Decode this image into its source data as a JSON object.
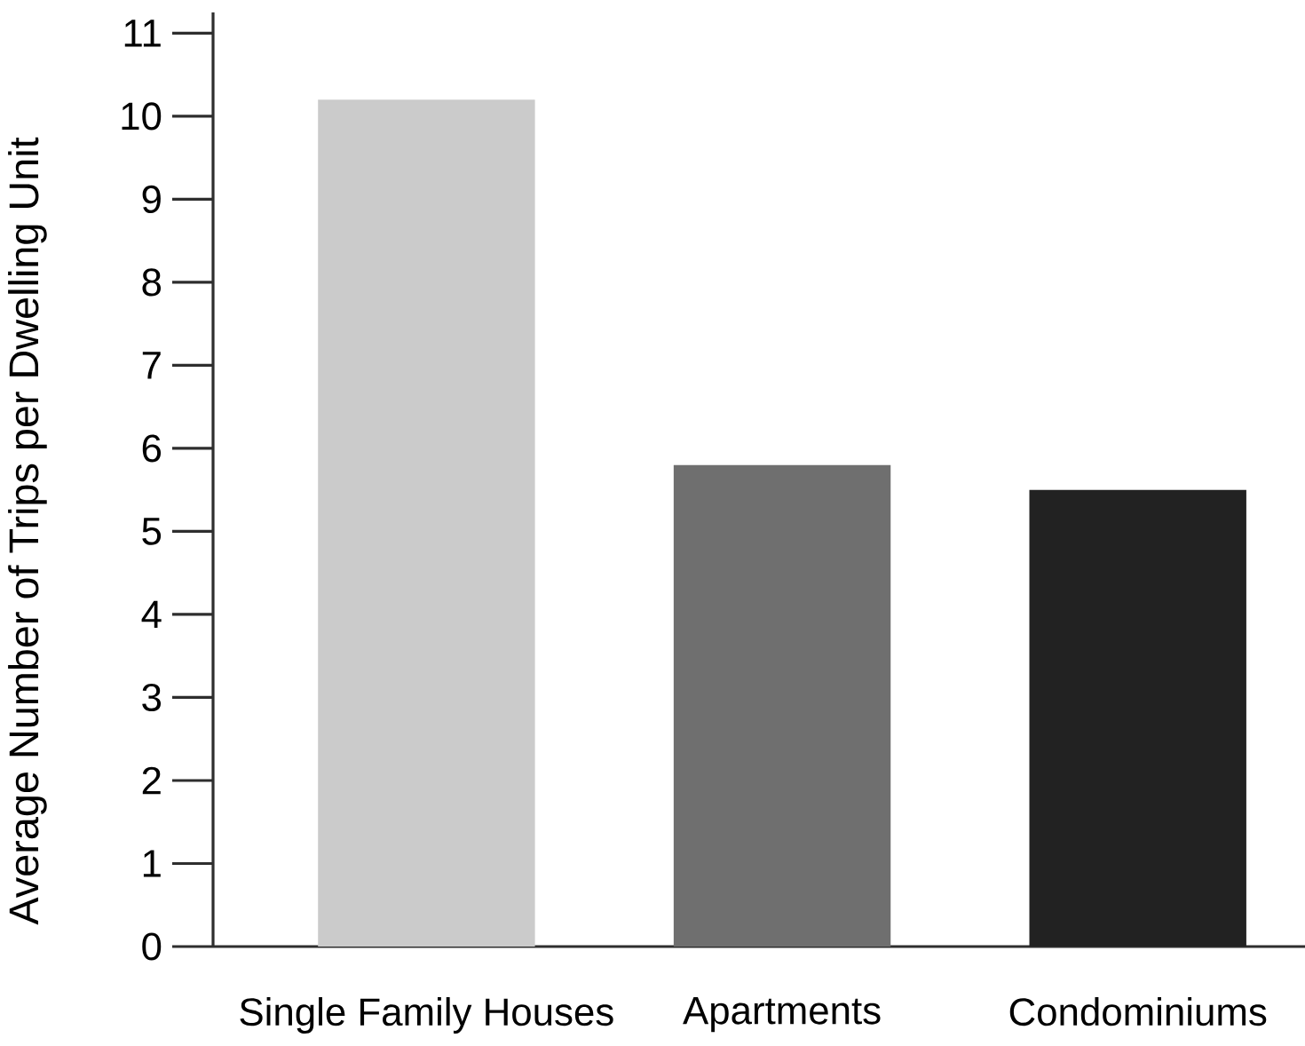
{
  "chart_data": {
    "type": "bar",
    "ylabel": "Average Number of Trips per Dwelling Unit",
    "categories": [
      "Single Family Houses",
      "Apartments",
      "Condominiums"
    ],
    "values": [
      10.2,
      5.8,
      5.5
    ],
    "colors": [
      "#cbcbcb",
      "#6f6f6f",
      "#222222"
    ],
    "ylim": [
      0,
      11.25
    ],
    "yticks": [
      0,
      1,
      2,
      3,
      4,
      5,
      6,
      7,
      8,
      9,
      10,
      11
    ]
  }
}
